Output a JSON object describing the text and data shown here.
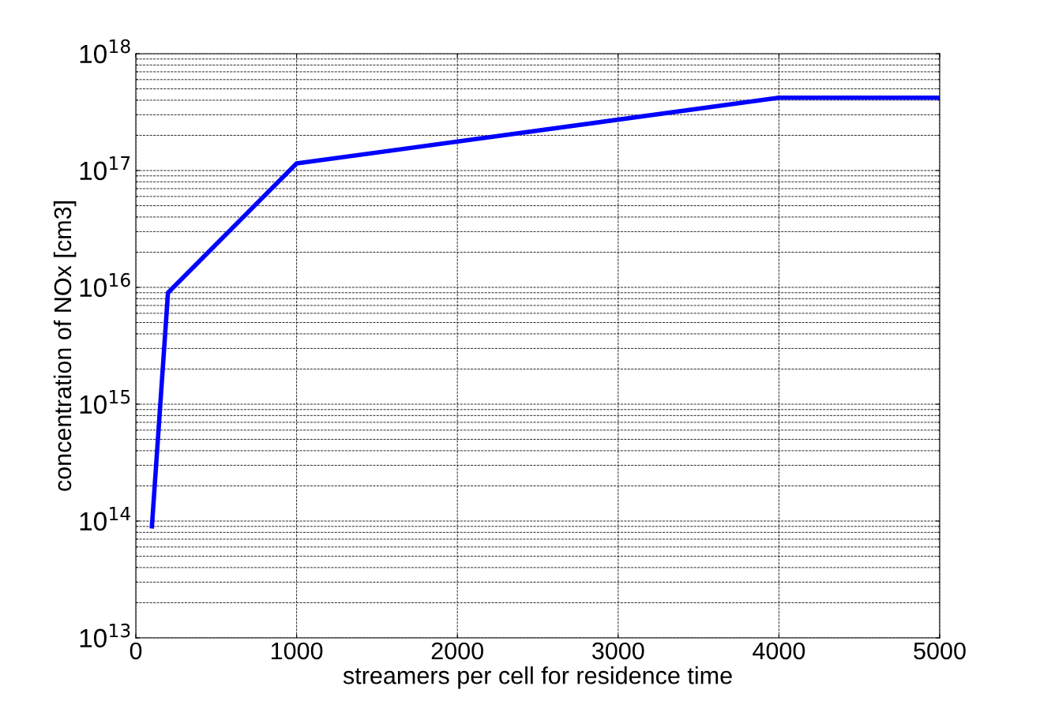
{
  "chart_data": {
    "type": "line",
    "xlabel": "streamers per cell for residence time",
    "ylabel": "concentration of NOx [cm3]",
    "x": [
      100,
      200,
      1000,
      4000,
      5000
    ],
    "series": [
      {
        "color": "#0000ff",
        "values": [
          90000000000000.0,
          9000000000000000.0,
          1.15e+17,
          4.2e+17,
          4.2e+17
        ]
      }
    ],
    "log": "y",
    "xlim": [
      0,
      5000
    ],
    "xticks": [
      0,
      1000,
      2000,
      3000,
      4000,
      5000
    ],
    "ylim": [
      10000000000000.0,
      1e+18
    ],
    "yticks": [
      {
        "value": 10000000000000.0,
        "label": "10$^{13}$"
      },
      {
        "value": 100000000000000.0,
        "label": "10$^{14}$"
      },
      {
        "value": 1000000000000000.0,
        "label": "10$^{15}$"
      },
      {
        "value": 1e+16,
        "label": "10$^{16}$"
      },
      {
        "value": 1e+17,
        "label": "10$^{17}$"
      },
      {
        "value": 1e+18,
        "label": "10$^{18}$"
      }
    ],
    "grid": true,
    "line_style": "solid",
    "marker": "none"
  }
}
